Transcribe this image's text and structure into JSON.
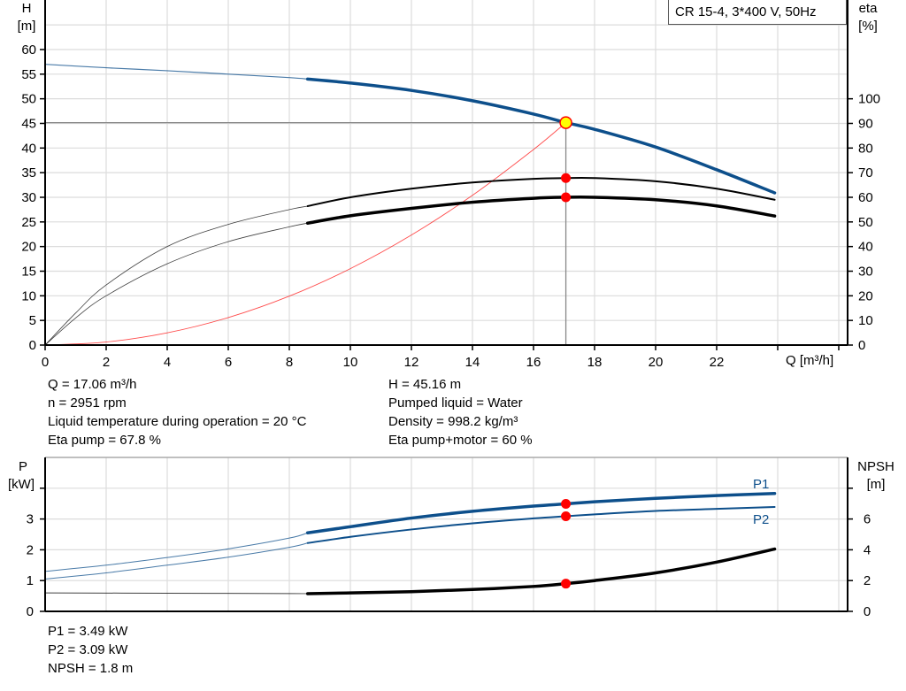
{
  "chart_data": [
    {
      "type": "line",
      "title": "CR 15-4, 3*400 V, 50Hz",
      "xlabel": "Q [m³/h]",
      "ylabel": "H\n[m]",
      "ylabel_parts": [
        "H",
        "[m]"
      ],
      "y2label_parts": [
        "eta",
        "[%]"
      ],
      "xlim": [
        0,
        26
      ],
      "ylim": [
        0,
        65
      ],
      "y2lim": [
        0,
        130
      ],
      "grid": true,
      "x_ticks": [
        "0",
        "2",
        "4",
        "6",
        "8",
        "10",
        "12",
        "14",
        "16",
        "18",
        "20",
        "22"
      ],
      "y_ticks": [
        "0",
        "5",
        "10",
        "15",
        "20",
        "25",
        "30",
        "35",
        "40",
        "45",
        "50",
        "55",
        "60"
      ],
      "y2_ticks": [
        "0",
        "10",
        "20",
        "30",
        "40",
        "50",
        "60",
        "70",
        "80",
        "90",
        "100"
      ],
      "colors": {
        "head": "#0d4f8b",
        "eta": "#000000",
        "system": "#ff0000",
        "duty_point": "#ffff00",
        "marker": "#ff0000"
      },
      "series": [
        {
          "id": "head",
          "axis": "left",
          "x": [
            0,
            2,
            4,
            6,
            8,
            8.6,
            10,
            12,
            14,
            16,
            17.06,
            18,
            20,
            22,
            23.9
          ],
          "y": [
            57,
            56.3,
            55.7,
            55,
            54.3,
            54,
            53.2,
            51.7,
            49.6,
            46.9,
            45.16,
            43.8,
            40.2,
            35.6,
            30.9
          ]
        },
        {
          "id": "eta-pump",
          "axis": "right",
          "x": [
            0,
            1,
            2,
            4,
            6,
            8,
            8.6,
            10,
            12,
            14,
            16,
            17.06,
            18,
            20,
            22,
            23.9
          ],
          "y": [
            0,
            13,
            24.4,
            40,
            49,
            55,
            56.4,
            60,
            63.5,
            66,
            67.5,
            67.8,
            67.8,
            66.5,
            63.5,
            59
          ]
        },
        {
          "id": "eta-pump-motor",
          "axis": "right",
          "x": [
            0,
            1,
            2,
            4,
            6,
            8,
            8.6,
            10,
            12,
            14,
            16,
            17.06,
            18,
            20,
            22,
            23.9
          ],
          "y": [
            0,
            11,
            20,
            33,
            42,
            48,
            49.5,
            52.5,
            55.5,
            58,
            59.6,
            60,
            60,
            59,
            56.5,
            52.4
          ]
        },
        {
          "id": "system",
          "axis": "left",
          "x": [
            0,
            2,
            4,
            6,
            8,
            10,
            12,
            14,
            16,
            17.06
          ],
          "y": [
            0,
            0.62,
            2.48,
            5.58,
            9.93,
            15.52,
            22.34,
            30.4,
            39.7,
            45.16
          ]
        }
      ],
      "duty_point": {
        "q": 17.06,
        "h": 45.16
      }
    },
    {
      "type": "line",
      "ylabel_parts": [
        "P",
        "[kW]"
      ],
      "y2label_parts": [
        "NPSH",
        "[m]"
      ],
      "xlim": [
        0,
        26
      ],
      "ylim": [
        0,
        5
      ],
      "y2lim": [
        0,
        10
      ],
      "grid": true,
      "y_ticks": [
        "0",
        "1",
        "2",
        "3"
      ],
      "y2_ticks": [
        "0",
        "2",
        "4",
        "6"
      ],
      "series": [
        {
          "id": "p1",
          "name": "P1",
          "axis": "left",
          "x": [
            0,
            2,
            4,
            6,
            8,
            8.6,
            10,
            12,
            14,
            16,
            17.06,
            18,
            20,
            22,
            23.9
          ],
          "y": [
            1.3,
            1.5,
            1.75,
            2.03,
            2.38,
            2.55,
            2.75,
            3.03,
            3.25,
            3.42,
            3.49,
            3.56,
            3.67,
            3.76,
            3.83
          ]
        },
        {
          "id": "p2",
          "name": "P2",
          "axis": "left",
          "x": [
            0,
            2,
            4,
            6,
            8,
            8.6,
            10,
            12,
            14,
            16,
            17.06,
            18,
            20,
            22,
            23.9
          ],
          "y": [
            1.05,
            1.25,
            1.5,
            1.76,
            2.08,
            2.22,
            2.42,
            2.66,
            2.86,
            3.02,
            3.09,
            3.15,
            3.26,
            3.33,
            3.39
          ]
        },
        {
          "id": "npsh",
          "axis": "right",
          "x": [
            0,
            4,
            8,
            8.6,
            10,
            12,
            14,
            16,
            17.06,
            18,
            20,
            22,
            23.9
          ],
          "y": [
            1.2,
            1.18,
            1.16,
            1.15,
            1.2,
            1.28,
            1.42,
            1.62,
            1.8,
            2.0,
            2.5,
            3.2,
            4.05
          ]
        }
      ],
      "markers_q": 17.06
    }
  ],
  "info_top_left": [
    "Q = 17.06 m³/h",
    "n = 2951 rpm",
    "Liquid temperature during operation = 20 °C",
    "Eta pump = 67.8 %"
  ],
  "info_top_right": [
    "H = 45.16 m",
    "Pumped liquid = Water",
    "Density = 998.2 kg/m³",
    "Eta pump+motor = 60 %"
  ],
  "info_bottom": [
    "P1 = 3.49 kW",
    "P2 = 3.09 kW",
    "NPSH = 1.8 m"
  ]
}
